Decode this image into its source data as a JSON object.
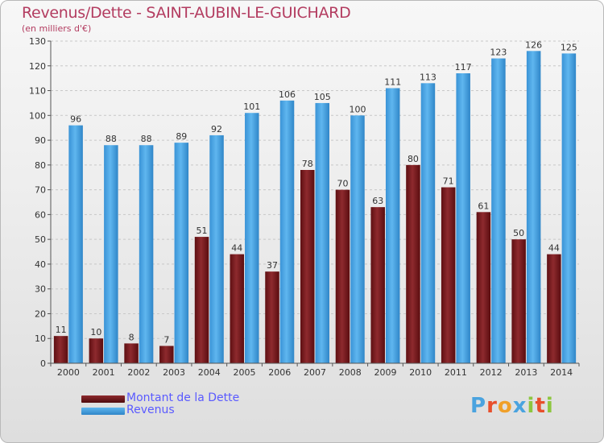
{
  "title": "Revenus/Dette - SAINT-AUBIN-LE-GUICHARD",
  "subtitle": "(en milliers d'€)",
  "legend": [
    {
      "label": "Montant de la Dette",
      "color": "#7a1a1a"
    },
    {
      "label": "Revenus",
      "color": "#3d9ee0"
    }
  ],
  "logo": {
    "text": "Proxiti",
    "letters": [
      "P",
      "r",
      "o",
      "x",
      "i",
      "t",
      "i"
    ],
    "colors": [
      "#4aa3df",
      "#e84f2c",
      "#f0a029",
      "#4aa3df",
      "#8dc63f",
      "#e84f2c",
      "#8dc63f"
    ]
  },
  "chart_data": {
    "type": "bar",
    "categories": [
      "2000",
      "2001",
      "2002",
      "2003",
      "2004",
      "2005",
      "2006",
      "2007",
      "2008",
      "2009",
      "2010",
      "2011",
      "2012",
      "2013",
      "2014"
    ],
    "series": [
      {
        "name": "Montant de la Dette",
        "color": "#7a1a1a",
        "values": [
          11,
          10,
          8,
          7,
          51,
          44,
          37,
          78,
          70,
          63,
          80,
          71,
          61,
          50,
          44
        ]
      },
      {
        "name": "Revenus",
        "color": "#3d9ee0",
        "values": [
          96,
          88,
          88,
          89,
          92,
          101,
          106,
          105,
          100,
          111,
          113,
          117,
          123,
          126,
          125
        ]
      }
    ],
    "ylim": [
      0,
      130
    ],
    "yticks": [
      0,
      10,
      20,
      30,
      40,
      50,
      60,
      70,
      80,
      90,
      100,
      110,
      120,
      130
    ],
    "grid": true,
    "legend_position": "bottom-left"
  }
}
